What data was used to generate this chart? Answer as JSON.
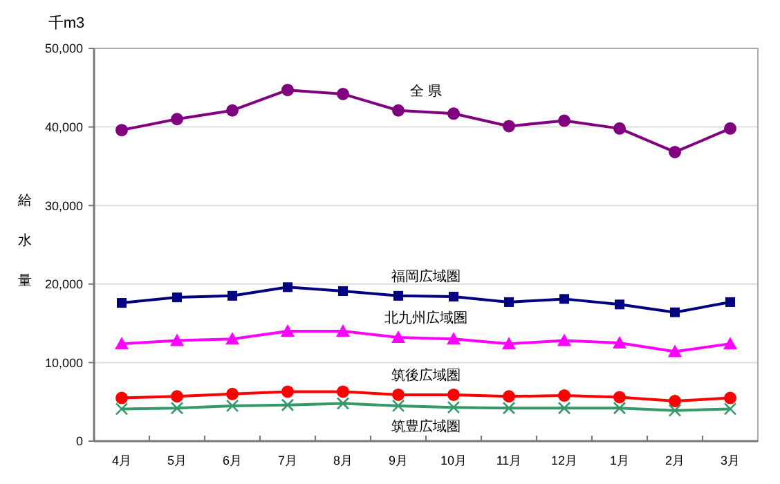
{
  "chart_data": {
    "type": "line",
    "ylabel": "給水量",
    "annotations": [
      "千m3"
    ],
    "categories": [
      "4月",
      "5月",
      "6月",
      "7月",
      "8月",
      "9月",
      "10月",
      "11月",
      "12月",
      "1月",
      "2月",
      "3月"
    ],
    "ylim": [
      0,
      50000
    ],
    "yticks": [
      {
        "value": 0,
        "label": "0"
      },
      {
        "value": 10000,
        "label": "10,000"
      },
      {
        "value": 20000,
        "label": "20,000"
      },
      {
        "value": 30000,
        "label": "30,000"
      },
      {
        "value": 40000,
        "label": "40,000"
      },
      {
        "value": 50000,
        "label": "50,000"
      }
    ],
    "grid": "y",
    "legend": false,
    "series": [
      {
        "name": "全 県",
        "color": "#800080",
        "marker": "circle",
        "values": [
          39600,
          41000,
          42100,
          44700,
          44200,
          42100,
          41700,
          40100,
          40800,
          39800,
          36800,
          39800
        ]
      },
      {
        "name": "福岡広域圏",
        "color": "#000080",
        "marker": "square",
        "values": [
          17600,
          18300,
          18500,
          19600,
          19100,
          18500,
          18400,
          17700,
          18100,
          17400,
          16400,
          17700
        ]
      },
      {
        "name": "北九州広域圏",
        "color": "#ff00ff",
        "marker": "triangle",
        "values": [
          12400,
          12800,
          13000,
          14000,
          14000,
          13200,
          13000,
          12400,
          12800,
          12500,
          11400,
          12400
        ]
      },
      {
        "name": "筑後広域圏",
        "color": "#ff0000",
        "marker": "circle",
        "values": [
          5500,
          5700,
          6000,
          6300,
          6300,
          5900,
          5900,
          5700,
          5800,
          5600,
          5100,
          5500
        ]
      },
      {
        "name": "筑豊広域圏",
        "color": "#339966",
        "marker": "cross",
        "values": [
          4100,
          4200,
          4500,
          4600,
          4800,
          4500,
          4300,
          4200,
          4200,
          4200,
          3900,
          4100
        ]
      }
    ]
  }
}
